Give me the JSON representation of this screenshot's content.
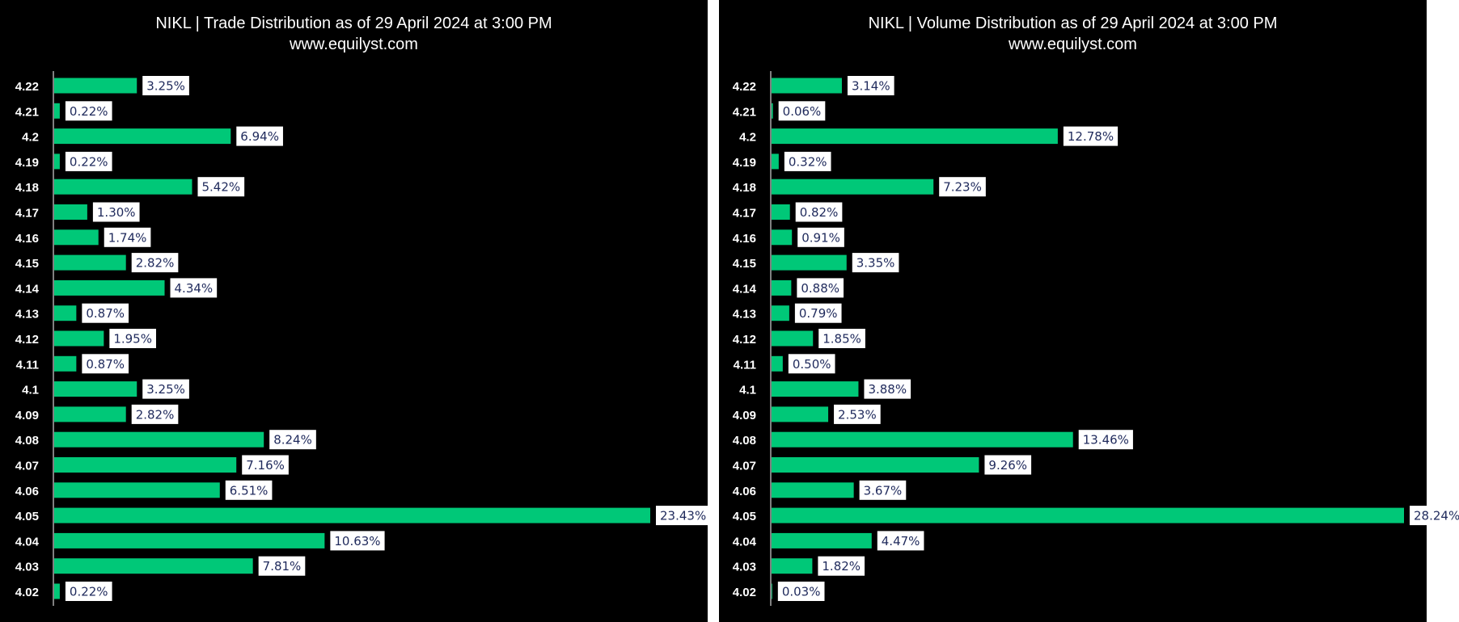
{
  "colors": {
    "background": "#000000",
    "bar": "#00c878",
    "axis_text": "#ffffff",
    "label_box": "#ffffff",
    "label_text": "#1f2a5c",
    "separator": "#ffffff"
  },
  "chart_data": [
    {
      "type": "bar",
      "orientation": "horizontal",
      "title": "NIKL | Trade Distribution as of 29 April 2024 at 3:00 PM",
      "subtitle": "www.equilyst.com",
      "xlabel": "",
      "ylabel": "",
      "categories": [
        "4.22",
        "4.21",
        "4.2",
        "4.19",
        "4.18",
        "4.17",
        "4.16",
        "4.15",
        "4.14",
        "4.13",
        "4.12",
        "4.11",
        "4.1",
        "4.09",
        "4.08",
        "4.07",
        "4.06",
        "4.05",
        "4.04",
        "4.03",
        "4.02"
      ],
      "values": [
        3.25,
        0.22,
        6.94,
        0.22,
        5.42,
        1.3,
        1.74,
        2.82,
        4.34,
        0.87,
        1.95,
        0.87,
        3.25,
        2.82,
        8.24,
        7.16,
        6.51,
        23.43,
        10.63,
        7.81,
        0.22
      ],
      "data_labels": [
        "3.25%",
        "0.22%",
        "6.94%",
        "0.22%",
        "5.42%",
        "1.30%",
        "1.74%",
        "2.82%",
        "4.34%",
        "0.87%",
        "1.95%",
        "0.87%",
        "3.25%",
        "2.82%",
        "8.24%",
        "7.16%",
        "6.51%",
        "23.43%",
        "10.63%",
        "7.81%",
        "0.22%"
      ],
      "grid": false,
      "legend": "none"
    },
    {
      "type": "bar",
      "orientation": "horizontal",
      "title": "NIKL | Volume Distribution as of 29 April 2024 at 3:00 PM",
      "subtitle": "www.equilyst.com",
      "xlabel": "",
      "ylabel": "",
      "categories": [
        "4.22",
        "4.21",
        "4.2",
        "4.19",
        "4.18",
        "4.17",
        "4.16",
        "4.15",
        "4.14",
        "4.13",
        "4.12",
        "4.11",
        "4.1",
        "4.09",
        "4.08",
        "4.07",
        "4.06",
        "4.05",
        "4.04",
        "4.03",
        "4.02"
      ],
      "values": [
        3.14,
        0.06,
        12.78,
        0.32,
        7.23,
        0.82,
        0.91,
        3.35,
        0.88,
        0.79,
        1.85,
        0.5,
        3.88,
        2.53,
        13.46,
        9.26,
        3.67,
        28.24,
        4.47,
        1.82,
        0.03
      ],
      "data_labels": [
        "3.14%",
        "0.06%",
        "12.78%",
        "0.32%",
        "7.23%",
        "0.82%",
        "0.91%",
        "3.35%",
        "0.88%",
        "0.79%",
        "1.85%",
        "0.50%",
        "3.88%",
        "2.53%",
        "13.46%",
        "9.26%",
        "3.67%",
        "28.24%",
        "4.47%",
        "1.82%",
        "0.03%"
      ],
      "grid": false,
      "legend": "none"
    }
  ]
}
